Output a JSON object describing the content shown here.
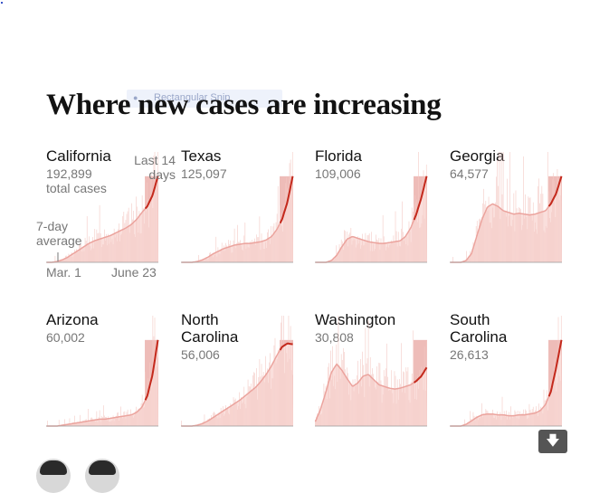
{
  "snip_label": "Rectangular Snip",
  "title": "Where new cases are increasing",
  "annotations": {
    "last14": "Last 14 days",
    "avg": "7-day average",
    "start": "Mar. 1",
    "end": "June 23",
    "total_cases": "total cases"
  },
  "colors": {
    "bar": "#f4c9c4",
    "area": "#fadfdc",
    "line_old": "#eba39d",
    "line_recent": "#c4291c",
    "shade": "#e8a6a0"
  },
  "download_icon": "arrow-down-icon",
  "chart_data": [
    {
      "type": "area",
      "state": "California",
      "total_cases": "192,899",
      "start": "Mar. 1",
      "end": "June 23",
      "recent_days": 14,
      "x_index_range": [
        0,
        115
      ],
      "y_shape": [
        0,
        0,
        1,
        3,
        6,
        10,
        14,
        18,
        22,
        25,
        27,
        29,
        31,
        34,
        37,
        40,
        44,
        50,
        58,
        65,
        78,
        100
      ]
    },
    {
      "type": "area",
      "state": "Texas",
      "total_cases": "125,097",
      "start": "Mar. 1",
      "end": "June 23",
      "recent_days": 14,
      "y_shape": [
        0,
        0,
        0,
        1,
        3,
        6,
        10,
        13,
        16,
        18,
        20,
        21,
        22,
        22,
        23,
        24,
        26,
        30,
        38,
        50,
        70,
        100
      ]
    },
    {
      "type": "area",
      "state": "Florida",
      "total_cases": "109,006",
      "start": "Mar. 1",
      "end": "June 23",
      "recent_days": 14,
      "y_shape": [
        0,
        0,
        0,
        2,
        8,
        18,
        27,
        30,
        28,
        26,
        24,
        23,
        22,
        22,
        23,
        24,
        25,
        30,
        40,
        55,
        75,
        100
      ]
    },
    {
      "type": "area",
      "state": "Georgia",
      "total_cases": "64,577",
      "start": "Mar. 1",
      "end": "June 23",
      "recent_days": 14,
      "y_shape": [
        0,
        0,
        0,
        2,
        10,
        30,
        50,
        64,
        68,
        65,
        60,
        58,
        56,
        57,
        56,
        55,
        56,
        58,
        60,
        68,
        80,
        100
      ]
    },
    {
      "type": "area",
      "state": "Arizona",
      "total_cases": "60,002",
      "start": "Mar. 1",
      "end": "June 23",
      "recent_days": 14,
      "y_shape": [
        0,
        0,
        0,
        1,
        2,
        3,
        4,
        5,
        6,
        7,
        8,
        8,
        9,
        10,
        11,
        12,
        13,
        16,
        22,
        35,
        60,
        100
      ]
    },
    {
      "type": "area",
      "state": "North Carolina",
      "state_lines": [
        "North",
        "Carolina"
      ],
      "total_cases": "56,006",
      "start": "Mar. 1",
      "end": "June 23",
      "recent_days": 14,
      "y_shape": [
        0,
        0,
        0,
        1,
        3,
        6,
        10,
        14,
        18,
        22,
        26,
        30,
        35,
        40,
        45,
        52,
        60,
        70,
        82,
        92,
        96,
        95
      ]
    },
    {
      "type": "area",
      "state": "Washington",
      "total_cases": "30,808",
      "start": "Mar. 1",
      "end": "June 23",
      "recent_days": 14,
      "y_shape": [
        5,
        20,
        40,
        62,
        72,
        65,
        55,
        46,
        50,
        58,
        60,
        54,
        48,
        46,
        44,
        43,
        44,
        46,
        48,
        52,
        58,
        68
      ]
    },
    {
      "type": "area",
      "state": "South Carolina",
      "state_lines": [
        "South",
        "Carolina"
      ],
      "total_cases": "26,613",
      "start": "Mar. 1",
      "end": "June 23",
      "recent_days": 14,
      "y_shape": [
        0,
        0,
        0,
        2,
        6,
        10,
        13,
        14,
        14,
        13,
        13,
        12,
        12,
        13,
        13,
        14,
        15,
        18,
        25,
        40,
        68,
        100
      ]
    }
  ]
}
